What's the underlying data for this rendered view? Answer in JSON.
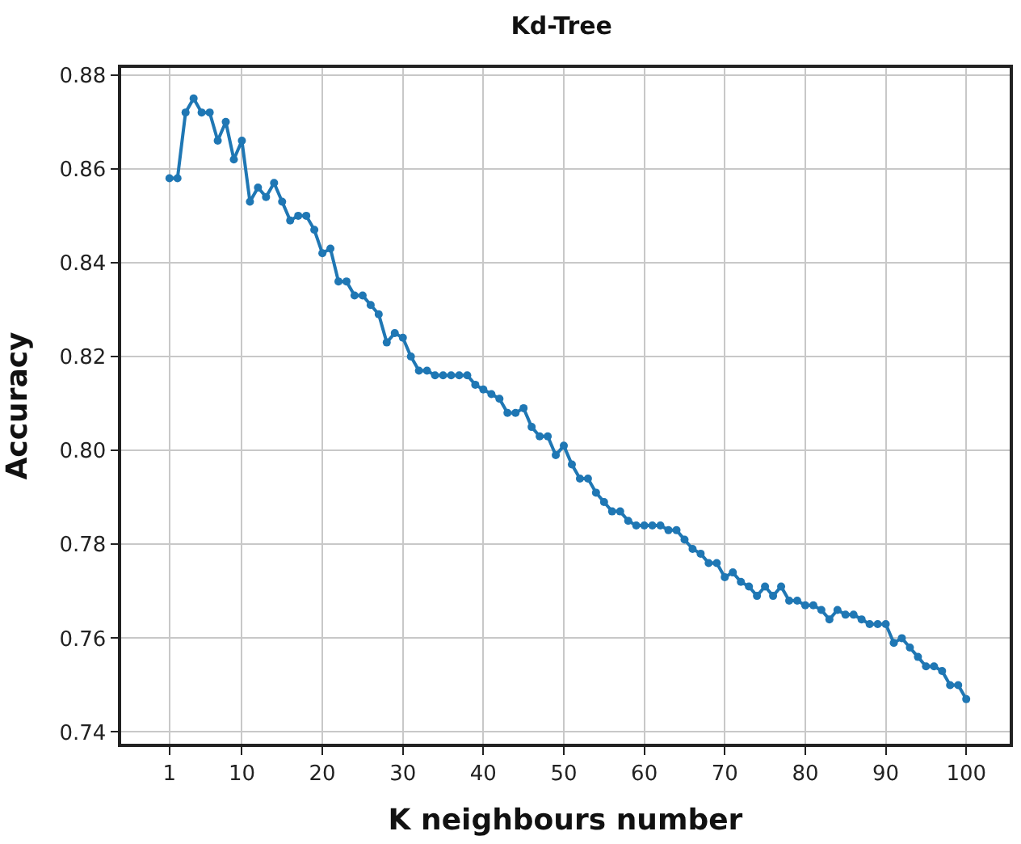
{
  "chart_data": {
    "type": "line",
    "title": "Kd-Tree",
    "xlabel": "K neighbours number",
    "ylabel": "Accuracy",
    "x": [
      1,
      2,
      3,
      4,
      5,
      6,
      7,
      8,
      9,
      10,
      11,
      12,
      13,
      14,
      15,
      16,
      17,
      18,
      19,
      20,
      21,
      22,
      23,
      24,
      25,
      26,
      27,
      28,
      29,
      30,
      31,
      32,
      33,
      34,
      35,
      36,
      37,
      38,
      39,
      40,
      41,
      42,
      43,
      44,
      45,
      46,
      47,
      48,
      49,
      50,
      51,
      52,
      53,
      54,
      55,
      56,
      57,
      58,
      59,
      60,
      61,
      62,
      63,
      64,
      65,
      66,
      67,
      68,
      69,
      70,
      71,
      72,
      73,
      74,
      75,
      76,
      77,
      78,
      79,
      80,
      81,
      82,
      83,
      84,
      85,
      86,
      87,
      88,
      89,
      90,
      91,
      92,
      93,
      94,
      95,
      96,
      97,
      98,
      99,
      100
    ],
    "series": [
      {
        "color": "#1f77b4",
        "values": [
          0.858,
          0.858,
          0.872,
          0.875,
          0.872,
          0.872,
          0.866,
          0.87,
          0.862,
          0.866,
          0.853,
          0.856,
          0.854,
          0.857,
          0.853,
          0.849,
          0.85,
          0.85,
          0.847,
          0.842,
          0.843,
          0.836,
          0.836,
          0.833,
          0.833,
          0.831,
          0.829,
          0.823,
          0.825,
          0.824,
          0.82,
          0.817,
          0.817,
          0.816,
          0.816,
          0.816,
          0.816,
          0.816,
          0.814,
          0.813,
          0.812,
          0.811,
          0.808,
          0.808,
          0.809,
          0.805,
          0.803,
          0.803,
          0.799,
          0.801,
          0.797,
          0.794,
          0.794,
          0.791,
          0.789,
          0.787,
          0.787,
          0.785,
          0.784,
          0.784,
          0.784,
          0.784,
          0.783,
          0.783,
          0.781,
          0.779,
          0.778,
          0.776,
          0.776,
          0.773,
          0.774,
          0.772,
          0.771,
          0.769,
          0.771,
          0.769,
          0.771,
          0.768,
          0.768,
          0.767,
          0.767,
          0.766,
          0.764,
          0.766,
          0.765,
          0.765,
          0.764,
          0.763,
          0.763,
          0.763,
          0.759,
          0.76,
          0.758,
          0.756,
          0.754,
          0.754,
          0.753,
          0.75,
          0.75,
          0.747
        ]
      }
    ],
    "xlim": [
      -5,
      105.4
    ],
    "ylim": [
      0.7375,
      0.8815
    ],
    "xticks": [
      1,
      10,
      20,
      30,
      40,
      50,
      60,
      70,
      80,
      90,
      100
    ],
    "yticks": [
      {
        "value": 0.74,
        "label": "0.74"
      },
      {
        "value": 0.76,
        "label": "0.76"
      },
      {
        "value": 0.78,
        "label": "0.78"
      },
      {
        "value": 0.8,
        "label": "0.80"
      },
      {
        "value": 0.82,
        "label": "0.82"
      },
      {
        "value": 0.84,
        "label": "0.84"
      },
      {
        "value": 0.86,
        "label": "0.86"
      },
      {
        "value": 0.88,
        "label": "0.88"
      }
    ],
    "grid": true,
    "marker": "circle",
    "line_style": "solid"
  }
}
